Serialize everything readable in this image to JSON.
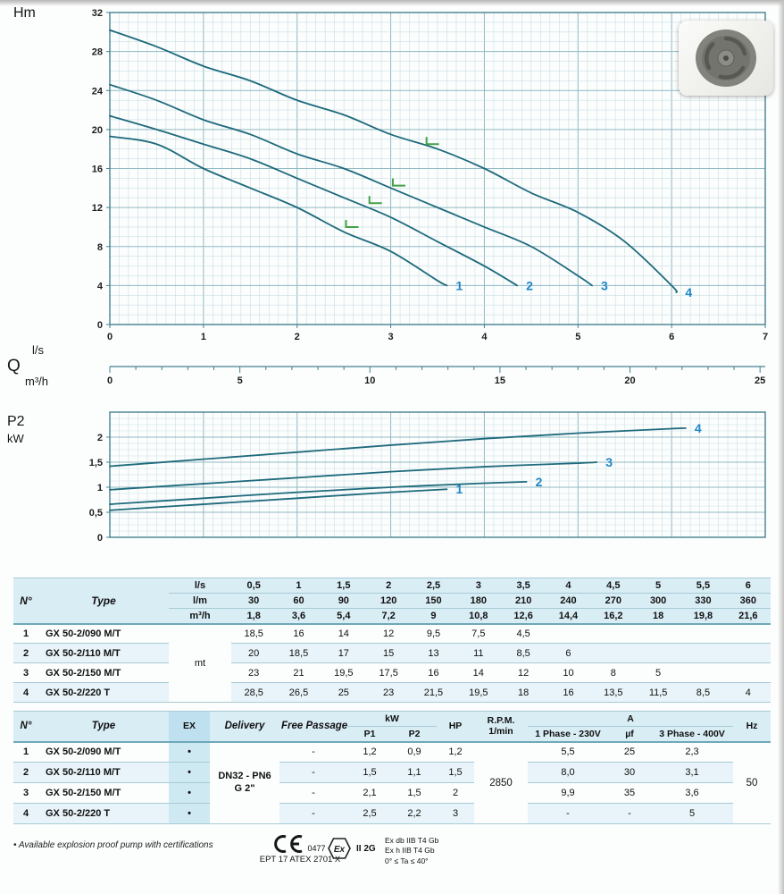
{
  "labels": {
    "head_axis": "Hm",
    "flow_q": "Q",
    "flow_ls": "l/s",
    "flow_m3h": "m³/h",
    "power_p2": "P2",
    "power_kw": "kW"
  },
  "colors": {
    "curve": "#1e6a7c",
    "grid_minor": "#c9e0e5",
    "grid_major": "#8fbac4",
    "frame": "#45818f",
    "series_label": "#1d86c8",
    "marker_green": "#43a047",
    "table_header_bg": "#d9edf5",
    "table_row_alt_bg": "#e8f4f9",
    "ex_column_bg": "#cfe9f3"
  },
  "chart_data": [
    {
      "type": "line",
      "name": "head-flow-curves",
      "title": "",
      "ylabel": "Hm",
      "xlabel": "Q (l/s)",
      "x2label": "Q (m³/h)",
      "xlim": [
        0,
        7
      ],
      "ylim": [
        0,
        32
      ],
      "xticks": [
        0,
        1,
        2,
        3,
        4,
        5,
        6,
        7
      ],
      "yticks": [
        0,
        4,
        8,
        12,
        16,
        20,
        24,
        28,
        32
      ],
      "x2ticks": [
        0,
        5,
        10,
        15,
        20,
        25
      ],
      "grid": true,
      "series": [
        {
          "name": "1",
          "x": [
            0,
            0.5,
            1,
            1.5,
            2,
            2.5,
            3,
            3.5,
            3.6
          ],
          "y": [
            19.3,
            18.5,
            16,
            14,
            12,
            9.5,
            7.5,
            4.5,
            4
          ]
        },
        {
          "name": "2",
          "x": [
            0,
            0.5,
            1,
            1.5,
            2,
            2.5,
            3,
            3.5,
            4,
            4.35
          ],
          "y": [
            21.4,
            20,
            18.5,
            17,
            15,
            13,
            11,
            8.5,
            6,
            4
          ]
        },
        {
          "name": "3",
          "x": [
            0,
            0.5,
            1,
            1.5,
            2,
            2.5,
            3,
            3.5,
            4,
            4.5,
            5,
            5.15
          ],
          "y": [
            24.6,
            23,
            21,
            19.5,
            17.5,
            16,
            14,
            12,
            10,
            8,
            5,
            4
          ]
        },
        {
          "name": "4",
          "x": [
            0,
            0.5,
            1,
            1.5,
            2,
            2.5,
            3,
            3.5,
            4,
            4.5,
            5,
            5.5,
            6,
            6.05
          ],
          "y": [
            30.2,
            28.5,
            26.5,
            25,
            23,
            21.5,
            19.5,
            18,
            16,
            13.5,
            11.5,
            8.5,
            4,
            3.3
          ]
        }
      ],
      "markers": [
        {
          "x": 2.57,
          "y": 10.0
        },
        {
          "x": 2.82,
          "y": 12.45
        },
        {
          "x": 3.07,
          "y": 14.25
        },
        {
          "x": 3.43,
          "y": 18.5
        }
      ]
    },
    {
      "type": "line",
      "name": "power-curves",
      "title": "",
      "ylabel": "P2 (kW)",
      "xlim": [
        0,
        7
      ],
      "ylim": [
        0,
        2.5
      ],
      "yticks": [
        0,
        0.5,
        1,
        1.5,
        2
      ],
      "ytick_labels": [
        "0",
        "0,5",
        "1",
        "1,5",
        "2"
      ],
      "grid": true,
      "series": [
        {
          "name": "1",
          "x": [
            0,
            1,
            2,
            3,
            3.6
          ],
          "y": [
            0.54,
            0.66,
            0.78,
            0.9,
            0.96
          ]
        },
        {
          "name": "2",
          "x": [
            0,
            1,
            2,
            3,
            4,
            4.45
          ],
          "y": [
            0.66,
            0.78,
            0.9,
            1.0,
            1.08,
            1.11
          ]
        },
        {
          "name": "3",
          "x": [
            0,
            1,
            2,
            3,
            4,
            5,
            5.2
          ],
          "y": [
            0.95,
            1.07,
            1.19,
            1.31,
            1.41,
            1.48,
            1.5
          ]
        },
        {
          "name": "4",
          "x": [
            0,
            1,
            2,
            3,
            4,
            5,
            6,
            6.15
          ],
          "y": [
            1.42,
            1.56,
            1.7,
            1.84,
            1.97,
            2.08,
            2.17,
            2.18
          ]
        }
      ]
    }
  ],
  "table1": {
    "col_no": "N°",
    "col_type": "Type",
    "body_unit": "mt",
    "unit_rows": [
      {
        "unit": "l/s",
        "values": [
          "0,5",
          "1",
          "1,5",
          "2",
          "2,5",
          "3",
          "3,5",
          "4",
          "4,5",
          "5",
          "5,5",
          "6"
        ]
      },
      {
        "unit": "l/m",
        "values": [
          "30",
          "60",
          "90",
          "120",
          "150",
          "180",
          "210",
          "240",
          "270",
          "300",
          "330",
          "360"
        ]
      },
      {
        "unit": "m³/h",
        "values": [
          "1,8",
          "3,6",
          "5,4",
          "7,2",
          "9",
          "10,8",
          "12,6",
          "14,4",
          "16,2",
          "18",
          "19,8",
          "21,6"
        ]
      }
    ],
    "rows": [
      {
        "no": "1",
        "type": "GX 50-2/090 M/T",
        "values": [
          "18,5",
          "16",
          "14",
          "12",
          "9,5",
          "7,5",
          "4,5",
          "",
          "",
          "",
          "",
          ""
        ]
      },
      {
        "no": "2",
        "type": "GX 50-2/110 M/T",
        "values": [
          "20",
          "18,5",
          "17",
          "15",
          "13",
          "11",
          "8,5",
          "6",
          "",
          "",
          "",
          ""
        ]
      },
      {
        "no": "3",
        "type": "GX 50-2/150 M/T",
        "values": [
          "23",
          "21",
          "19,5",
          "17,5",
          "16",
          "14",
          "12",
          "10",
          "8",
          "5",
          "",
          ""
        ]
      },
      {
        "no": "4",
        "type": "GX 50-2/220 T",
        "values": [
          "28,5",
          "26,5",
          "25",
          "23",
          "21,5",
          "19,5",
          "18",
          "16",
          "13,5",
          "11,5",
          "8,5",
          "4"
        ]
      }
    ]
  },
  "table2": {
    "headers": {
      "no": "N°",
      "type": "Type",
      "ex": "EX",
      "delivery": "Delivery",
      "free_passage": "Free Passage",
      "kw": "kW",
      "p1": "P1",
      "p2": "P2",
      "hp": "HP",
      "rpm": "R.P.M.",
      "rpm2": "1/min",
      "a": "A",
      "phase1": "1 Phase - 230V",
      "uf": "µf",
      "phase3": "3 Phase - 400V",
      "hz": "Hz"
    },
    "delivery_value": "DN32 - PN6",
    "delivery_value2": "G 2\"",
    "rpm_value": "2850",
    "hz_value": "50",
    "rows": [
      {
        "no": "1",
        "type": "GX 50-2/090 M/T",
        "ex": "•",
        "free_passage": "-",
        "p1": "1,2",
        "p2": "0,9",
        "hp": "1,2",
        "phase1": "5,5",
        "uf": "25",
        "phase3": "2,3"
      },
      {
        "no": "2",
        "type": "GX 50-2/110 M/T",
        "ex": "•",
        "free_passage": "-",
        "p1": "1,5",
        "p2": "1,1",
        "hp": "1,5",
        "phase1": "8,0",
        "uf": "30",
        "phase3": "3,1"
      },
      {
        "no": "3",
        "type": "GX 50-2/150 M/T",
        "ex": "•",
        "free_passage": "-",
        "p1": "2,1",
        "p2": "1,5",
        "hp": "2",
        "phase1": "9,9",
        "uf": "35",
        "phase3": "3,6"
      },
      {
        "no": "4",
        "type": "GX 50-2/220 T",
        "ex": "•",
        "free_passage": "-",
        "p1": "2,5",
        "p2": "2,2",
        "hp": "3",
        "phase1": "-",
        "uf": "-",
        "phase3": "5"
      }
    ]
  },
  "footer": {
    "note": "• Available explosion proof pump with certifications",
    "ce_mark": "CE",
    "ce_number": "0477",
    "atex_code": "EPT 17 ATEX 2701 X",
    "ex_symbol": "Ex",
    "ex_group": "II 2G",
    "cert_line1": "Ex db IIB T4 Gb",
    "cert_line2": "Ex h IIB T4 Gb",
    "cert_line3": "0° ≤ Ta ≤ 40°"
  }
}
